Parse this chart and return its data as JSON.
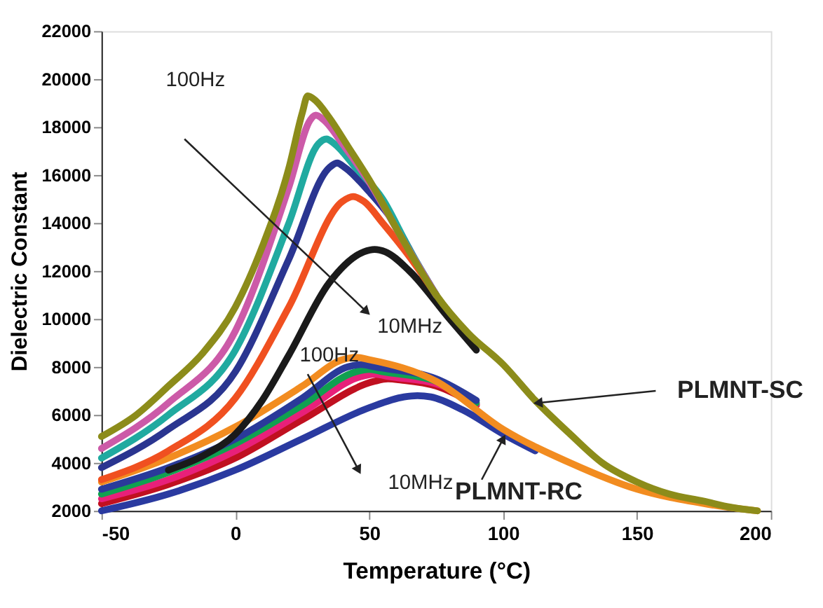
{
  "chart_data": {
    "type": "line",
    "xlabel": "Temperature (°C)",
    "ylabel": "Dielectric Constant",
    "xlim": [
      -50,
      200
    ],
    "xticks": [
      -50,
      0,
      50,
      100,
      150,
      200
    ],
    "ylim": [
      2000,
      22000
    ],
    "yticks": [
      2000,
      4000,
      6000,
      8000,
      10000,
      12000,
      14000,
      16000,
      18000,
      20000,
      22000
    ],
    "grid": false,
    "marker": "none",
    "line_style": "solid",
    "series": [
      {
        "color": "#8c8c1a",
        "x": [
          -50,
          -37,
          -25,
          -12,
          0,
          10,
          20,
          25,
          27,
          30,
          35,
          42,
          50,
          62,
          75,
          87,
          100,
          112,
          125,
          137,
          150,
          162,
          175,
          185,
          195
        ],
        "values": [
          5100,
          6000,
          7200,
          8600,
          10500,
          13000,
          16300,
          18600,
          19300,
          19100,
          18400,
          17200,
          15800,
          13400,
          11000,
          9400,
          8100,
          6600,
          5200,
          4000,
          3200,
          2700,
          2400,
          2150,
          2000
        ]
      },
      {
        "color": "#cc5aa8",
        "x": [
          -50,
          -25,
          0,
          20,
          28,
          30,
          33,
          40,
          50,
          62,
          75
        ],
        "values": [
          4600,
          6500,
          9500,
          15500,
          18300,
          18500,
          18300,
          17300,
          15700,
          13400,
          11000
        ]
      },
      {
        "color": "#20aaa0",
        "x": [
          -50,
          -25,
          0,
          20,
          31,
          34,
          37,
          45,
          55,
          65,
          75
        ],
        "values": [
          4200,
          6000,
          8700,
          14000,
          17300,
          17500,
          17300,
          16300,
          15000,
          12900,
          11000
        ]
      },
      {
        "color": "#2a3590",
        "x": [
          -50,
          -25,
          0,
          20,
          35,
          38,
          41,
          50,
          60,
          68,
          75
        ],
        "values": [
          3800,
          5400,
          7800,
          12500,
          16300,
          16500,
          16300,
          15300,
          13900,
          12300,
          11000
        ]
      },
      {
        "color": "#f05020",
        "x": [
          -50,
          -25,
          0,
          20,
          40,
          44,
          48,
          55,
          65,
          75
        ],
        "values": [
          3300,
          4500,
          6700,
          10500,
          14900,
          15100,
          14900,
          14000,
          12600,
          11000
        ]
      },
      {
        "color": "#1a1a1a",
        "x": [
          -25,
          -12,
          0,
          10,
          20,
          35,
          48,
          52,
          56,
          65,
          80,
          90
        ],
        "values": [
          3700,
          4300,
          5200,
          6600,
          8500,
          11500,
          12800,
          12900,
          12800,
          12000,
          10000,
          8700
        ]
      },
      {
        "color": "#f28c20",
        "x": [
          -50,
          -25,
          0,
          25,
          40,
          45,
          50,
          75,
          100,
          125,
          150,
          175,
          195
        ],
        "values": [
          3200,
          4200,
          5500,
          7200,
          8300,
          8400,
          8300,
          7400,
          5400,
          4000,
          2900,
          2300,
          2000
        ]
      },
      {
        "color": "#2a3a9a",
        "x": [
          -50,
          -25,
          0,
          25,
          42,
          47,
          52,
          75,
          90
        ],
        "values": [
          2900,
          3800,
          5000,
          6700,
          8000,
          8100,
          8000,
          7500,
          6600
        ]
      },
      {
        "color": "#10a050",
        "x": [
          -50,
          -25,
          0,
          25,
          45,
          50,
          55,
          75,
          90
        ],
        "values": [
          2700,
          3600,
          4800,
          6400,
          7800,
          7900,
          7800,
          7400,
          6500
        ]
      },
      {
        "color": "#e8207a",
        "x": [
          -50,
          -25,
          0,
          25,
          47,
          52,
          57,
          75,
          90
        ],
        "values": [
          2500,
          3300,
          4500,
          6100,
          7600,
          7700,
          7600,
          7300,
          6450
        ]
      },
      {
        "color": "#c01020",
        "x": [
          -50,
          -25,
          0,
          25,
          52,
          57,
          62,
          75,
          90
        ],
        "values": [
          2300,
          3100,
          4200,
          5800,
          7400,
          7500,
          7450,
          7200,
          6400
        ]
      },
      {
        "color": "#2a3aa0",
        "x": [
          -50,
          -25,
          0,
          25,
          50,
          63,
          68,
          73,
          85,
          100,
          112
        ],
        "values": [
          2000,
          2700,
          3700,
          5000,
          6300,
          6750,
          6800,
          6750,
          6200,
          5200,
          4500
        ]
      }
    ],
    "annotations": [
      "100Hz",
      "10MHz",
      "100Hz",
      "10MHz",
      {
        "text": "PLMNT-SC",
        "x": 113,
        "y": 6500
      },
      {
        "text": "PLMNT-RC",
        "x": 100,
        "y": 5000
      }
    ]
  }
}
